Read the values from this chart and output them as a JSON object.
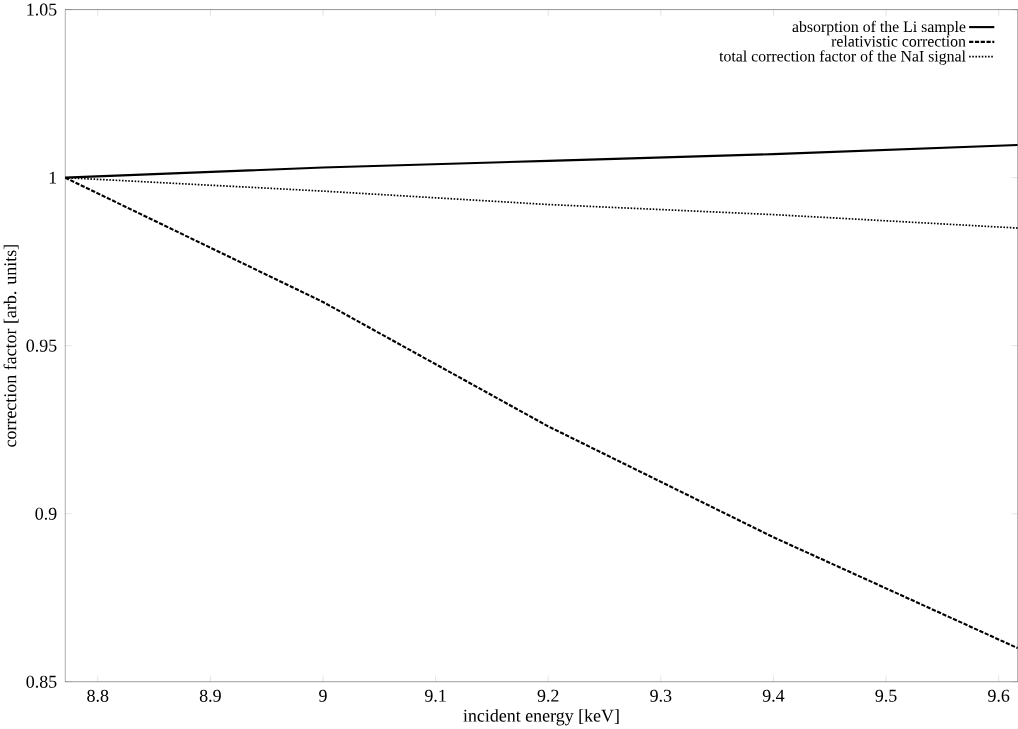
{
  "chart_data": {
    "type": "line",
    "xlabel": "incident energy [keV]",
    "ylabel": "correction factor [arb. units]",
    "x": [
      8.771,
      9.0,
      9.2,
      9.4,
      9.617
    ],
    "series": [
      {
        "name": "absorption of the Li sample",
        "color": "#000000",
        "line_style": "solid",
        "values": [
          1.0,
          1.003,
          1.005,
          1.007,
          1.0097
        ]
      },
      {
        "name": "relativistic correction",
        "color": "#000000",
        "line_style": "dashed",
        "values": [
          1.0,
          0.963,
          0.926,
          0.893,
          0.86
        ]
      },
      {
        "name": "total correction factor of the NaI signal",
        "color": "#000000",
        "line_style": "dotted",
        "values": [
          1.0,
          0.996,
          0.992,
          0.989,
          0.985
        ]
      }
    ],
    "xlim": [
      8.771,
      9.617
    ],
    "ylim": [
      0.85,
      1.05
    ],
    "xticks": [
      8.8,
      8.9,
      9,
      9.1,
      9.2,
      9.3,
      9.4,
      9.5,
      9.6
    ],
    "yticks": [
      0.85,
      0.9,
      0.95,
      1,
      1.05
    ],
    "legend": "top right",
    "grid": false
  }
}
